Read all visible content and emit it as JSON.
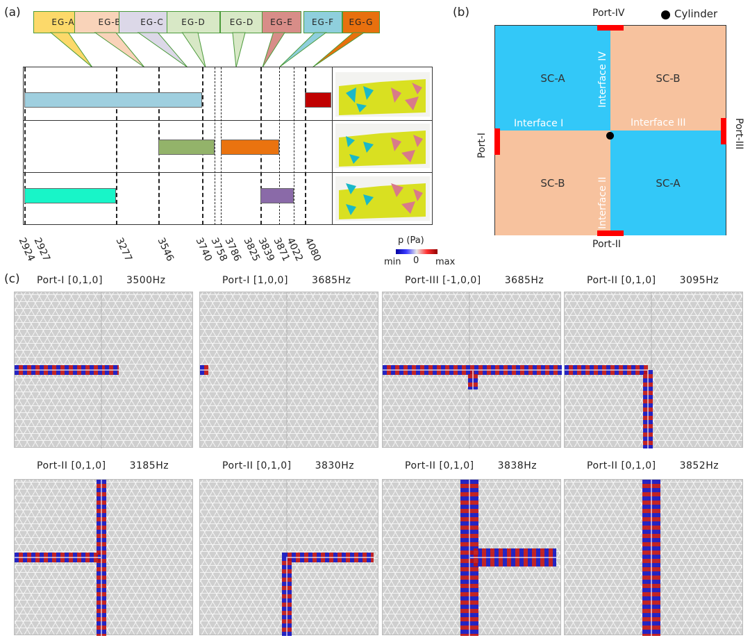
{
  "panel_a": {
    "label": "(a)",
    "callouts": [
      {
        "text": "EG-A",
        "color": "#fcd96a"
      },
      {
        "text": "EG-B",
        "color": "#f9d3b9"
      },
      {
        "text": "EG-C",
        "color": "#dcd8e8"
      },
      {
        "text": "EG-D",
        "color": "#d8e8c6"
      },
      {
        "text": "EG-D",
        "color": "#d8e8c6"
      },
      {
        "text": "EG-E",
        "color": "#d88d88"
      },
      {
        "text": "EG-F",
        "color": "#8fcfdd"
      },
      {
        "text": "EG-G",
        "color": "#e8700e"
      }
    ],
    "ticks": [
      "2924",
      "2927",
      "3277",
      "3546",
      "3740",
      "3758",
      "3786",
      "3825",
      "3839",
      "3871",
      "4022",
      "4080"
    ],
    "bands": [
      {
        "row": 1,
        "from": "2924",
        "to": "3740",
        "color": "#9fcfdf"
      },
      {
        "row": 1,
        "from": "4022",
        "to": "4080",
        "color": "#c00000"
      },
      {
        "row": 2,
        "from": "3546",
        "to": "3758",
        "color": "#93b36a"
      },
      {
        "row": 2,
        "from": "3786",
        "to": "3839",
        "color": "#ea730f"
      },
      {
        "row": 3,
        "from": "2924",
        "to": "3277",
        "color": "#18f5c8"
      },
      {
        "row": 3,
        "from": "3825",
        "to": "3871",
        "color": "#8a6aa8"
      }
    ],
    "colorbar": {
      "title": "p (Pa)",
      "min": "min",
      "zero": "0",
      "max": "max"
    }
  },
  "panel_b": {
    "label": "(b)",
    "legend": "Cylinder",
    "quadrants": [
      "SC-A",
      "SC-B",
      "SC-B",
      "SC-A"
    ],
    "interfaces": [
      "Interface I",
      "Interface II",
      "Interface III",
      "Interface IV"
    ],
    "ports": [
      "Port-I",
      "Port-II",
      "Port-III",
      "Port-IV"
    ],
    "colors": {
      "blue": "#33c8f8",
      "peach": "#f7c29e"
    }
  },
  "panel_c": {
    "label": "(c)",
    "maps": [
      {
        "port": "Port-I [0,1,0]",
        "freq": "3500Hz"
      },
      {
        "port": "Port-I [1,0,0]",
        "freq": "3685Hz"
      },
      {
        "port": "Port-III [-1,0,0]",
        "freq": "3685Hz"
      },
      {
        "port": "Port-II [0,1,0]",
        "freq": "3095Hz"
      },
      {
        "port": "Port-II [0,1,0]",
        "freq": "3185Hz"
      },
      {
        "port": "Port-II [0,1,0]",
        "freq": "3830Hz"
      },
      {
        "port": "Port-II [0,1,0]",
        "freq": "3838Hz"
      },
      {
        "port": "Port-II [0,1,0]",
        "freq": "3852Hz"
      }
    ]
  }
}
